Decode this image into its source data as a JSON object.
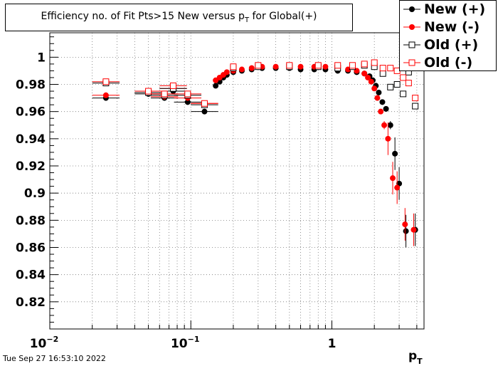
{
  "title": {
    "main": "Efficiency no. of Fit Pts>15 New versus p",
    "sub": "T",
    "suffix": " for Global(+)"
  },
  "timestamp": "Tue Sep 27 16:53:10 2022",
  "colors": {
    "plus": "#000000",
    "minus": "#ff0000"
  },
  "chart_data": {
    "type": "scatter",
    "xscale": "log",
    "xlim": [
      0.01,
      4.5
    ],
    "ylim": [
      0.8,
      1.018
    ],
    "grid": true,
    "xlabel": "p",
    "xlabel_sub": "T",
    "ylabel": "",
    "x_tick_labels": [
      {
        "base": "10",
        "exp": "−2",
        "value": 0.01
      },
      {
        "base": "10",
        "exp": "−1",
        "value": 0.1
      },
      {
        "base": "1",
        "exp": "",
        "value": 1
      }
    ],
    "y_ticks": [
      0.82,
      0.84,
      0.86,
      0.88,
      0.9,
      0.92,
      0.94,
      0.96,
      0.98,
      1
    ],
    "y_tick_labels": [
      "0.82",
      "0.84",
      "0.86",
      "0.88",
      "0.9",
      "0.92",
      "0.94",
      "0.96",
      "0.98",
      "1"
    ],
    "legend_position": "top-right",
    "series": [
      {
        "name": "New (+)",
        "marker": "filled-circle",
        "color": "#000000",
        "points": [
          [
            0.025,
            0.97
          ],
          [
            0.05,
            0.973
          ],
          [
            0.065,
            0.97
          ],
          [
            0.075,
            0.975
          ],
          [
            0.095,
            0.967
          ],
          [
            0.125,
            0.96
          ],
          [
            0.15,
            0.979
          ],
          [
            0.16,
            0.982
          ],
          [
            0.17,
            0.985
          ],
          [
            0.18,
            0.987
          ],
          [
            0.2,
            0.989
          ],
          [
            0.23,
            0.99
          ],
          [
            0.27,
            0.991
          ],
          [
            0.32,
            0.992
          ],
          [
            0.4,
            0.992
          ],
          [
            0.5,
            0.992
          ],
          [
            0.6,
            0.991
          ],
          [
            0.75,
            0.991
          ],
          [
            0.9,
            0.991
          ],
          [
            1.1,
            0.99
          ],
          [
            1.3,
            0.99
          ],
          [
            1.5,
            0.989
          ],
          [
            1.7,
            0.988
          ],
          [
            1.85,
            0.986
          ],
          [
            1.95,
            0.983
          ],
          [
            2.05,
            0.979
          ],
          [
            2.15,
            0.974
          ],
          [
            2.28,
            0.967
          ],
          [
            2.42,
            0.962
          ],
          [
            2.6,
            0.95
          ],
          [
            2.8,
            0.929
          ],
          [
            3.0,
            0.907
          ],
          [
            3.35,
            0.872
          ],
          [
            3.9,
            0.873
          ]
        ]
      },
      {
        "name": "New (-)",
        "marker": "filled-circle",
        "color": "#ff0000",
        "points": [
          [
            0.025,
            0.972
          ],
          [
            0.05,
            0.974
          ],
          [
            0.065,
            0.971
          ],
          [
            0.075,
            0.977
          ],
          [
            0.095,
            0.97
          ],
          [
            0.125,
            0.966
          ],
          [
            0.15,
            0.983
          ],
          [
            0.16,
            0.985
          ],
          [
            0.17,
            0.987
          ],
          [
            0.18,
            0.989
          ],
          [
            0.2,
            0.99
          ],
          [
            0.23,
            0.991
          ],
          [
            0.27,
            0.992
          ],
          [
            0.32,
            0.993
          ],
          [
            0.4,
            0.993
          ],
          [
            0.5,
            0.993
          ],
          [
            0.6,
            0.993
          ],
          [
            0.75,
            0.993
          ],
          [
            0.9,
            0.993
          ],
          [
            1.1,
            0.992
          ],
          [
            1.3,
            0.991
          ],
          [
            1.5,
            0.99
          ],
          [
            1.7,
            0.988
          ],
          [
            1.8,
            0.985
          ],
          [
            1.9,
            0.982
          ],
          [
            2.0,
            0.977
          ],
          [
            2.1,
            0.97
          ],
          [
            2.22,
            0.96
          ],
          [
            2.35,
            0.95
          ],
          [
            2.5,
            0.94
          ],
          [
            2.7,
            0.911
          ],
          [
            2.9,
            0.904
          ],
          [
            3.3,
            0.877
          ],
          [
            3.8,
            0.873
          ]
        ]
      },
      {
        "name": "Old (+)",
        "marker": "open-square",
        "color": "#000000",
        "points": [
          [
            0.025,
            0.981
          ],
          [
            0.05,
            0.974
          ],
          [
            0.065,
            0.972
          ],
          [
            0.075,
            0.977
          ],
          [
            0.095,
            0.972
          ],
          [
            0.125,
            0.965
          ],
          [
            0.2,
            0.992
          ],
          [
            0.3,
            0.993
          ],
          [
            0.5,
            0.993
          ],
          [
            0.8,
            0.993
          ],
          [
            1.1,
            0.992
          ],
          [
            1.4,
            0.993
          ],
          [
            1.7,
            0.994
          ],
          [
            2.0,
            0.993
          ],
          [
            2.3,
            0.988
          ],
          [
            2.6,
            0.978
          ],
          [
            2.9,
            0.98
          ],
          [
            3.2,
            0.973
          ],
          [
            3.5,
            0.989
          ],
          [
            3.9,
            0.964
          ]
        ]
      },
      {
        "name": "Old (-)",
        "marker": "open-square",
        "color": "#ff0000",
        "points": [
          [
            0.025,
            0.982
          ],
          [
            0.05,
            0.975
          ],
          [
            0.065,
            0.973
          ],
          [
            0.075,
            0.979
          ],
          [
            0.095,
            0.973
          ],
          [
            0.125,
            0.966
          ],
          [
            0.2,
            0.993
          ],
          [
            0.3,
            0.994
          ],
          [
            0.5,
            0.994
          ],
          [
            0.8,
            0.994
          ],
          [
            1.1,
            0.994
          ],
          [
            1.4,
            0.994
          ],
          [
            1.7,
            0.995
          ],
          [
            2.0,
            0.996
          ],
          [
            2.3,
            0.992
          ],
          [
            2.6,
            0.992
          ],
          [
            2.9,
            0.99
          ],
          [
            3.2,
            0.985
          ],
          [
            3.5,
            0.981
          ],
          [
            3.9,
            0.97
          ]
        ]
      }
    ]
  }
}
